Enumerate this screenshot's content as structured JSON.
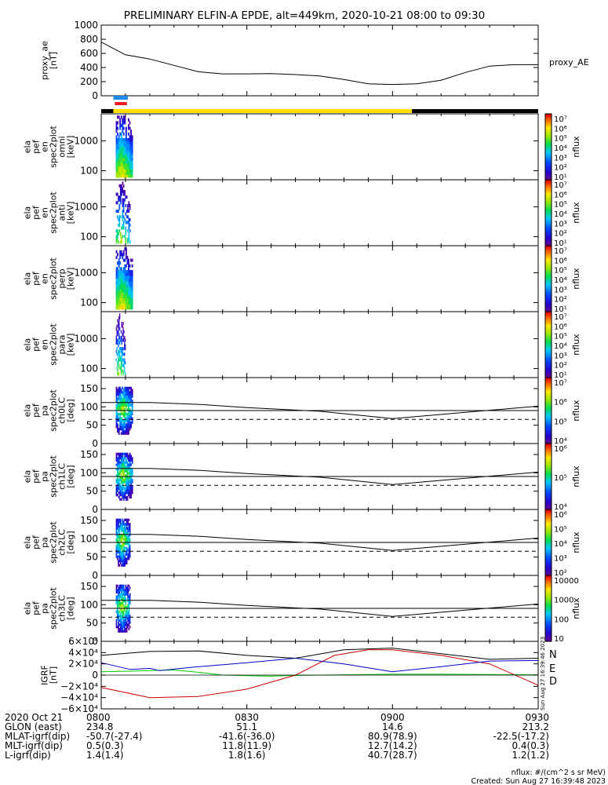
{
  "title": "PRELIMINARY ELFIN-A EPDE, alt=449km, 2020-10-21 08:00 to 09:30",
  "chart_data": [
    {
      "type": "line",
      "panel": "proxy_ae",
      "ylabel": "proxy_ae [nT]",
      "yticks": [
        "1000",
        "800",
        "600",
        "400",
        "200",
        "0"
      ],
      "ytick_values": [
        1000,
        800,
        600,
        400,
        200,
        0
      ],
      "ylim": [
        0,
        1000
      ],
      "xlim": [
        0,
        90
      ],
      "series": [
        {
          "name": "proxy_AE",
          "x": [
            0,
            5,
            10,
            15,
            20,
            25,
            30,
            35,
            40,
            45,
            50,
            55,
            60,
            65,
            70,
            75,
            80,
            85,
            90
          ],
          "y": [
            760,
            580,
            520,
            430,
            340,
            310,
            310,
            315,
            300,
            280,
            230,
            170,
            160,
            170,
            220,
            330,
            420,
            440,
            440
          ]
        }
      ]
    },
    {
      "type": "heatmap",
      "panel": "ela_pef_en_spec2plot_omni",
      "ylabel": "ela pef en spec2plot omni [keV]",
      "yticks": [
        "1000",
        "100"
      ],
      "ytick_values": [
        1000,
        100
      ],
      "ylim_log": [
        50,
        8000
      ],
      "colorbar_ticks": [
        "10⁷",
        "10⁶",
        "10⁵",
        "10⁴",
        "10³",
        "10²",
        "10¹"
      ],
      "colorbar_label": "nflux",
      "x_active": [
        3,
        6.5
      ]
    },
    {
      "type": "heatmap",
      "panel": "ela_pef_en_spec2plot_anti",
      "ylabel": "ela pef en spec2plot anti [keV]",
      "yticks": [
        "1000",
        "100"
      ],
      "ytick_values": [
        1000,
        100
      ],
      "ylim_log": [
        50,
        8000
      ],
      "colorbar_ticks": [
        "10⁷",
        "10⁶",
        "10⁵",
        "10⁴",
        "10³",
        "10²",
        "10¹"
      ],
      "colorbar_label": "nflux",
      "x_active": [
        3,
        6
      ]
    },
    {
      "type": "heatmap",
      "panel": "ela_pef_en_spec2plot_perp",
      "ylabel": "ela pef en spec2plot perp [keV]",
      "yticks": [
        "1000",
        "100"
      ],
      "ytick_values": [
        1000,
        100
      ],
      "ylim_log": [
        50,
        8000
      ],
      "colorbar_ticks": [
        "10⁷",
        "10⁶",
        "10⁵",
        "10⁴",
        "10³",
        "10²",
        "10¹"
      ],
      "colorbar_label": "nflux",
      "x_active": [
        3,
        6.5
      ]
    },
    {
      "type": "heatmap",
      "panel": "ela_pef_en_spec2plot_para",
      "ylabel": "ela pef en spec2plot para [keV]",
      "yticks": [
        "1000",
        "100"
      ],
      "ytick_values": [
        1000,
        100
      ],
      "ylim_log": [
        50,
        8000
      ],
      "colorbar_ticks": [
        "10⁷",
        "10⁶",
        "10⁵",
        "10⁴",
        "10³",
        "10²",
        "10¹"
      ],
      "colorbar_label": "nflux",
      "x_active": [
        3,
        5
      ]
    },
    {
      "type": "heatmap",
      "panel": "ela_pef_pa_spec2plot_ch0LC",
      "ylabel": "ela pef pa spec2plot ch0LC [deg]",
      "yticks": [
        "150",
        "100",
        "50",
        "0"
      ],
      "ytick_values": [
        150,
        100,
        50,
        0
      ],
      "ylim": [
        0,
        180
      ],
      "colorbar_ticks": [
        "10⁷",
        "10⁶",
        "10⁵",
        "10⁴"
      ],
      "colorbar_label": "nflux",
      "x_active": [
        3,
        6.5
      ],
      "reference_lines": {
        "upper": {
          "x": [
            0,
            10,
            20,
            30,
            45,
            60,
            75,
            90
          ],
          "y": [
            112,
            112,
            107,
            98,
            88,
            68,
            85,
            102
          ]
        },
        "lower": {
          "x": [
            0,
            90
          ],
          "y": [
            90,
            90
          ]
        },
        "dashed": {
          "x": [
            0,
            90
          ],
          "y": [
            66,
            66
          ]
        }
      }
    },
    {
      "type": "heatmap",
      "panel": "ela_pef_pa_spec2plot_ch1LC",
      "ylabel": "ela pef pa spec2plot ch1LC [deg]",
      "yticks": [
        "150",
        "100",
        "50",
        "0"
      ],
      "ytick_values": [
        150,
        100,
        50,
        0
      ],
      "ylim": [
        0,
        180
      ],
      "colorbar_ticks": [
        "10⁶",
        "10⁵",
        "10⁴"
      ],
      "colorbar_label": "nflux",
      "x_active": [
        3,
        6.5
      ],
      "reference_lines": {
        "upper": {
          "x": [
            0,
            10,
            20,
            30,
            45,
            60,
            75,
            90
          ],
          "y": [
            112,
            112,
            107,
            98,
            88,
            68,
            85,
            102
          ]
        },
        "lower": {
          "x": [
            0,
            90
          ],
          "y": [
            90,
            90
          ]
        },
        "dashed": {
          "x": [
            0,
            90
          ],
          "y": [
            66,
            66
          ]
        }
      }
    },
    {
      "type": "heatmap",
      "panel": "ela_pef_pa_spec2plot_ch2LC",
      "ylabel": "ela pef pa spec2plot ch2LC [deg]",
      "yticks": [
        "150",
        "100",
        "50",
        "0"
      ],
      "ytick_values": [
        150,
        100,
        50,
        0
      ],
      "ylim": [
        0,
        180
      ],
      "colorbar_ticks": [
        "10⁶",
        "10⁵",
        "10⁴",
        "10³",
        "10²"
      ],
      "colorbar_label": "nflux",
      "x_active": [
        3,
        6
      ],
      "reference_lines": {
        "upper": {
          "x": [
            0,
            10,
            20,
            30,
            45,
            60,
            75,
            90
          ],
          "y": [
            112,
            112,
            107,
            98,
            88,
            68,
            85,
            102
          ]
        },
        "lower": {
          "x": [
            0,
            90
          ],
          "y": [
            90,
            90
          ]
        },
        "dashed": {
          "x": [
            0,
            90
          ],
          "y": [
            66,
            66
          ]
        }
      }
    },
    {
      "type": "heatmap",
      "panel": "ela_pef_pa_spec2plot_ch3LC",
      "ylabel": "ela pef pa spec2plot ch3LC [deg]",
      "yticks": [
        "150",
        "100",
        "50",
        "0"
      ],
      "ytick_values": [
        150,
        100,
        50,
        0
      ],
      "ylim": [
        0,
        180
      ],
      "colorbar_ticks": [
        "10000",
        "1000",
        "100",
        "10"
      ],
      "colorbar_label": "nflux",
      "x_active": [
        3,
        6
      ],
      "reference_lines": {
        "upper": {
          "x": [
            0,
            10,
            20,
            30,
            45,
            60,
            75,
            90
          ],
          "y": [
            112,
            112,
            107,
            98,
            88,
            68,
            85,
            102
          ]
        },
        "lower": {
          "x": [
            0,
            90
          ],
          "y": [
            90,
            90
          ]
        },
        "dashed": {
          "x": [
            0,
            90
          ],
          "y": [
            66,
            66
          ]
        }
      }
    },
    {
      "type": "line",
      "panel": "IGRF",
      "ylabel": "IGRF [nT]",
      "yticks": [
        "6×10⁴",
        "4×10⁴",
        "2×10⁴",
        "0",
        "−2×10⁴",
        "−4×10⁴",
        "−6×10⁴"
      ],
      "ytick_values": [
        60000,
        40000,
        20000,
        0,
        -20000,
        -40000,
        -60000
      ],
      "ylim": [
        -60000,
        60000
      ],
      "xlim": [
        0,
        90
      ],
      "series": [
        {
          "name": "N",
          "color": "#000000",
          "x": [
            0,
            10,
            20,
            30,
            40,
            50,
            60,
            70,
            80,
            90
          ],
          "y": [
            35000,
            42000,
            43000,
            35000,
            30000,
            45000,
            48000,
            38000,
            28000,
            30000
          ]
        },
        {
          "name": "E",
          "color": "#00cc00",
          "x": [
            0,
            6,
            10,
            15,
            20,
            25,
            30,
            35,
            40,
            50,
            60,
            70,
            80,
            90
          ],
          "y": [
            6000,
            7000,
            8000,
            9000,
            5000,
            0,
            -1000,
            -2000,
            -500,
            500,
            1500,
            1500,
            1000,
            500
          ]
        },
        {
          "name": "D",
          "color": "#cc0000",
          "x": [
            0,
            10,
            20,
            30,
            40,
            48,
            55,
            60,
            70,
            80,
            90
          ],
          "y": [
            -22000,
            -40000,
            -38000,
            -25000,
            0,
            35000,
            45000,
            45000,
            35000,
            20000,
            -18000
          ]
        },
        {
          "name": "",
          "color": "#0000cc",
          "x": [
            0,
            6,
            10,
            12,
            20,
            30,
            40,
            50,
            60,
            70,
            80,
            90
          ],
          "y": [
            22000,
            10000,
            12000,
            8000,
            15000,
            22000,
            30000,
            20000,
            6000,
            15000,
            25000,
            26000
          ]
        }
      ],
      "side_stamp": "Sun Aug 27 16:39:46 2023"
    }
  ],
  "ephemeris": {
    "rows": [
      {
        "label": "2020 Oct 21",
        "values": [
          "0800",
          "0830",
          "0900",
          "0930"
        ]
      },
      {
        "label": "GLON (east)",
        "values": [
          "234.8",
          "51.1",
          "14.6",
          "213.2"
        ]
      },
      {
        "label": "MLAT-igrf(dip)",
        "values": [
          "-50.7(-27.4)",
          "-41.6(-36.0)",
          "80.9(78.9)",
          "-22.5(-17.2)"
        ]
      },
      {
        "label": "MLT-igrf(dip)",
        "values": [
          "0.5(0.3)",
          "11.8(11.9)",
          "12.7(14.2)",
          "0.4(0.3)"
        ]
      },
      {
        "label": "L-igrf(dip)",
        "values": [
          "1.4(1.4)",
          "1.8(1.6)",
          "40.7(28.7)",
          "1.2(1.2)"
        ]
      }
    ],
    "x_minutes": [
      0,
      30,
      60,
      90
    ]
  },
  "footer": {
    "units": "nflux: #/(cm^2 s sr MeV)",
    "created": "Created: Sun Aug 27 16:39:48 2023"
  },
  "colors": {
    "bar_blue": "#1e8be8",
    "bar_red": "#ee1c24",
    "bar_yellow": "#ffe000",
    "bar_black": "#000000"
  }
}
